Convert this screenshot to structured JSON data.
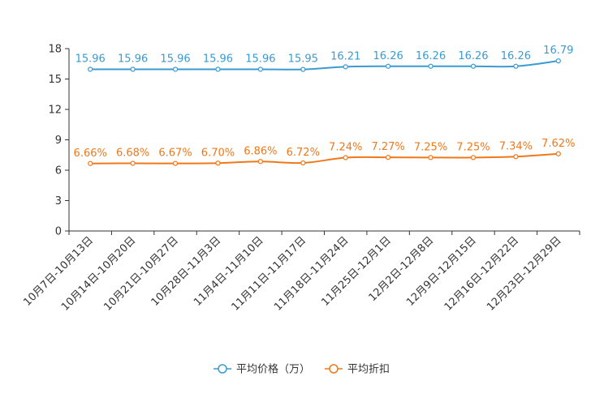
{
  "chart_data": {
    "type": "line",
    "categories": [
      "10月7日-10月13日",
      "10月14日-10月20日",
      "10月21日-10月27日",
      "10月28日-11月3日",
      "11月4日-11月10日",
      "11月11日-11月17日",
      "11月18日-11月24日",
      "11月25日-12月1日",
      "12月2日-12月8日",
      "12月9日-12月15日",
      "12月16日-12月22日",
      "12月23日-12月29日"
    ],
    "series": [
      {
        "name": "平均价格（万）",
        "color": "#3a9bd1",
        "values": [
          15.96,
          15.96,
          15.96,
          15.96,
          15.96,
          15.95,
          16.21,
          16.26,
          16.26,
          16.26,
          16.26,
          16.79
        ],
        "labels": [
          "15.96",
          "15.96",
          "15.96",
          "15.96",
          "15.96",
          "15.95",
          "16.21",
          "16.26",
          "16.26",
          "16.26",
          "16.26",
          "16.79"
        ]
      },
      {
        "name": "平均折扣",
        "color": "#f07818",
        "values": [
          6.66,
          6.68,
          6.67,
          6.7,
          6.86,
          6.72,
          7.24,
          7.27,
          7.25,
          7.25,
          7.34,
          7.62
        ],
        "labels": [
          "6.66%",
          "6.68%",
          "6.67%",
          "6.70%",
          "6.86%",
          "6.72%",
          "7.24%",
          "7.27%",
          "7.25%",
          "7.25%",
          "7.34%",
          "7.62%"
        ]
      }
    ],
    "yticks": [
      0,
      3,
      6,
      9,
      12,
      15,
      18
    ],
    "ylim": [
      0,
      18
    ],
    "title": "",
    "xlabel": "",
    "ylabel": "",
    "legend_position": "bottom-center"
  }
}
